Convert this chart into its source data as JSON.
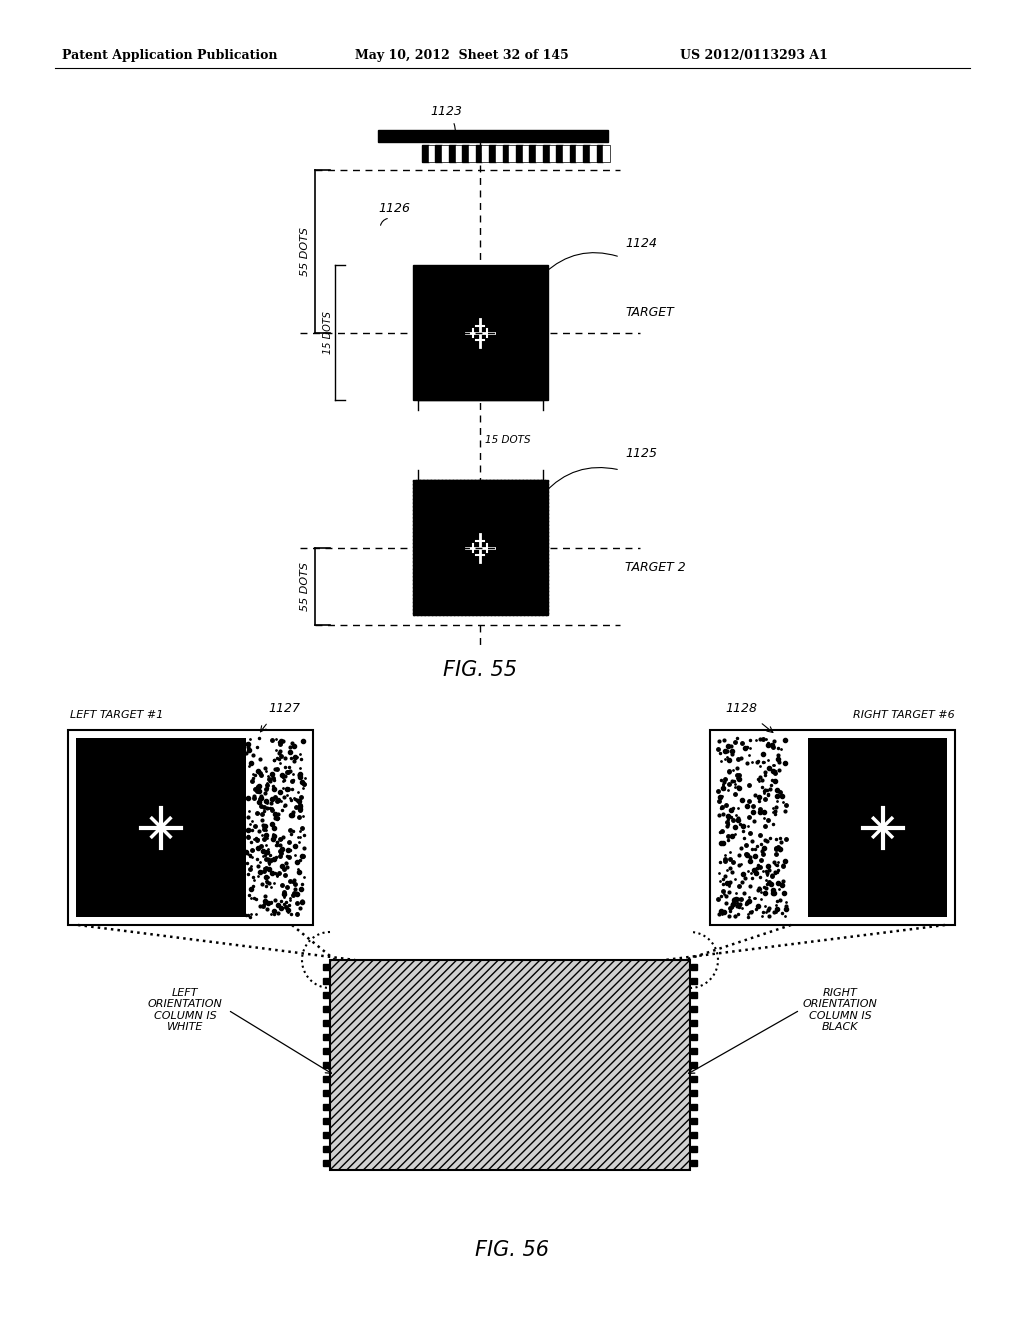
{
  "bg_color": "#ffffff",
  "header_left": "Patent Application Publication",
  "header_mid": "May 10, 2012  Sheet 32 of 145",
  "header_right": "US 2012/0113293 A1",
  "fig55_label": "FIG. 55",
  "fig56_label": "FIG. 56",
  "label_1123": "1123",
  "label_1124": "1124",
  "label_1125": "1125",
  "label_1126": "1126",
  "label_1127": "1127",
  "label_1128": "1128",
  "label_55dots_top": "55 DOTS",
  "label_55dots_bot": "55 DOTS",
  "label_15dots_v": "15 DOTS",
  "label_15dots_h": "15 DOTS",
  "label_target": "TARGET",
  "label_target2": "TARGET 2",
  "label_left_target": "LEFT TARGET #1",
  "label_right_target": "RIGHT TARGET #6",
  "label_left_col": "LEFT\nORIENTATION\nCOLUMN IS\nWHITE",
  "label_right_col": "RIGHT\nORIENTATION\nCOLUMN IS\nBLACK"
}
